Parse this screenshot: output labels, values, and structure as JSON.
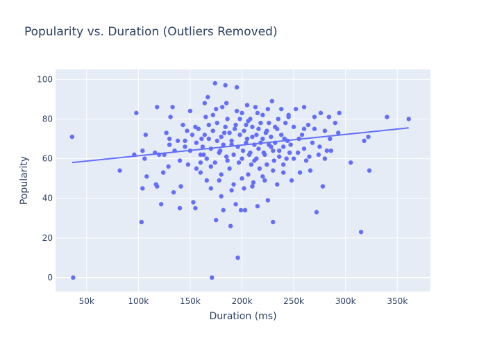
{
  "chart_data": {
    "type": "scatter",
    "title": "Popularity vs. Duration (Outliers Removed)",
    "xlabel": "Duration (ms)",
    "ylabel": "Popularity",
    "xlim": [
      20000,
      382000
    ],
    "ylim": [
      -7,
      105
    ],
    "xticks": [
      50000,
      100000,
      150000,
      200000,
      250000,
      300000,
      350000
    ],
    "xtick_labels": [
      "50k",
      "100k",
      "150k",
      "200k",
      "250k",
      "300k",
      "350k"
    ],
    "yticks": [
      0,
      20,
      40,
      60,
      80,
      100
    ],
    "ytick_labels": [
      "0",
      "20",
      "40",
      "60",
      "80",
      "100"
    ],
    "grid": true,
    "legend": "none",
    "colors": {
      "points": "#636efa",
      "trend": "#636efa",
      "plot_bg": "#e5ecf6",
      "grid": "#ffffff",
      "text": "#2a3f5f"
    },
    "trendline": {
      "x": [
        36000,
        361000
      ],
      "y": [
        58,
        75.5
      ]
    },
    "series": [
      {
        "points": [
          [
            36000,
            71
          ],
          [
            37000,
            0
          ],
          [
            82000,
            54
          ],
          [
            96000,
            62
          ],
          [
            98000,
            83
          ],
          [
            103000,
            28
          ],
          [
            104000,
            45
          ],
          [
            104000,
            64
          ],
          [
            106000,
            60
          ],
          [
            107000,
            72
          ],
          [
            108000,
            51
          ],
          [
            116000,
            63
          ],
          [
            117000,
            47
          ],
          [
            118000,
            86
          ],
          [
            118000,
            46
          ],
          [
            120000,
            62
          ],
          [
            122000,
            37
          ],
          [
            124000,
            53
          ],
          [
            127000,
            73
          ],
          [
            129000,
            56
          ],
          [
            130000,
            67
          ],
          [
            131000,
            81
          ],
          [
            133000,
            86
          ],
          [
            134000,
            43
          ],
          [
            138000,
            69
          ],
          [
            140000,
            35
          ],
          [
            141000,
            46
          ],
          [
            143000,
            77
          ],
          [
            145000,
            66
          ],
          [
            147000,
            74
          ],
          [
            148000,
            57
          ],
          [
            150000,
            84
          ],
          [
            152000,
            72
          ],
          [
            153000,
            38
          ],
          [
            155000,
            35
          ],
          [
            156000,
            55
          ],
          [
            160000,
            58
          ],
          [
            161000,
            70
          ],
          [
            163000,
            62
          ],
          [
            164000,
            88
          ],
          [
            166000,
            49
          ],
          [
            167000,
            91
          ],
          [
            168000,
            77
          ],
          [
            170000,
            56
          ],
          [
            171000,
            0
          ],
          [
            172000,
            82
          ],
          [
            174000,
            98
          ],
          [
            175000,
            29
          ],
          [
            176000,
            69
          ],
          [
            178000,
            49
          ],
          [
            179000,
            64
          ],
          [
            180000,
            41
          ],
          [
            181000,
            86
          ],
          [
            182000,
            34
          ],
          [
            183000,
            73
          ],
          [
            184000,
            97
          ],
          [
            185000,
            61
          ],
          [
            186000,
            80
          ],
          [
            188000,
            55
          ],
          [
            189000,
            26
          ],
          [
            190000,
            67
          ],
          [
            192000,
            47
          ],
          [
            193000,
            75
          ],
          [
            194000,
            37
          ],
          [
            195000,
            96
          ],
          [
            196000,
            10
          ],
          [
            197000,
            58
          ],
          [
            198000,
            72
          ],
          [
            199000,
            34
          ],
          [
            200000,
            83
          ],
          [
            201000,
            64
          ],
          [
            202000,
            45
          ],
          [
            203000,
            34
          ],
          [
            204000,
            77
          ],
          [
            205000,
            70
          ],
          [
            206000,
            52
          ],
          [
            207000,
            62
          ],
          [
            208000,
            80
          ],
          [
            209000,
            57
          ],
          [
            210000,
            71
          ],
          [
            211000,
            48
          ],
          [
            212000,
            67
          ],
          [
            213000,
            86
          ],
          [
            214000,
            60
          ],
          [
            215000,
            36
          ],
          [
            216000,
            75
          ],
          [
            217000,
            55
          ],
          [
            218000,
            68
          ],
          [
            220000,
            82
          ],
          [
            221000,
            63
          ],
          [
            222000,
            49
          ],
          [
            223000,
            73
          ],
          [
            224000,
            57
          ],
          [
            225000,
            39
          ],
          [
            226000,
            78
          ],
          [
            228000,
            66
          ],
          [
            229000,
            89
          ],
          [
            230000,
            28
          ],
          [
            231000,
            59
          ],
          [
            232000,
            76
          ],
          [
            234000,
            47
          ],
          [
            236000,
            64
          ],
          [
            238000,
            85
          ],
          [
            240000,
            53
          ],
          [
            241000,
            70
          ],
          [
            243000,
            60
          ],
          [
            245000,
            81
          ],
          [
            247000,
            67
          ],
          [
            248000,
            49
          ],
          [
            250000,
            76
          ],
          [
            252000,
            85
          ],
          [
            254000,
            63
          ],
          [
            256000,
            53
          ],
          [
            258000,
            72
          ],
          [
            260000,
            86
          ],
          [
            262000,
            59
          ],
          [
            264000,
            77
          ],
          [
            266000,
            54
          ],
          [
            268000,
            68
          ],
          [
            270000,
            81
          ],
          [
            272000,
            33
          ],
          [
            274000,
            62
          ],
          [
            276000,
            83
          ],
          [
            278000,
            46
          ],
          [
            280000,
            74
          ],
          [
            282000,
            64
          ],
          [
            284000,
            81
          ],
          [
            286000,
            64
          ],
          [
            290000,
            78
          ],
          [
            293000,
            73
          ],
          [
            294000,
            83
          ],
          [
            305000,
            58
          ],
          [
            315000,
            23
          ],
          [
            318000,
            69
          ],
          [
            322000,
            71
          ],
          [
            323000,
            54
          ],
          [
            340000,
            81
          ],
          [
            361000,
            80
          ],
          [
            156000,
            68
          ],
          [
            158000,
            75
          ],
          [
            160000,
            62
          ],
          [
            162000,
            66
          ],
          [
            164000,
            72
          ],
          [
            166000,
            60
          ],
          [
            168000,
            70
          ],
          [
            170000,
            65
          ],
          [
            172000,
            74
          ],
          [
            174000,
            58
          ],
          [
            176000,
            78
          ],
          [
            178000,
            63
          ],
          [
            180000,
            71
          ],
          [
            182000,
            67
          ],
          [
            184000,
            76
          ],
          [
            186000,
            59
          ],
          [
            188000,
            73
          ],
          [
            190000,
            69
          ],
          [
            192000,
            62
          ],
          [
            194000,
            77
          ],
          [
            196000,
            66
          ],
          [
            198000,
            80
          ],
          [
            200000,
            60
          ],
          [
            202000,
            74
          ],
          [
            204000,
            68
          ],
          [
            206000,
            79
          ],
          [
            208000,
            63
          ],
          [
            210000,
            76
          ],
          [
            212000,
            59
          ],
          [
            214000,
            72
          ],
          [
            216000,
            65
          ],
          [
            218000,
            78
          ],
          [
            220000,
            70
          ],
          [
            222000,
            62
          ],
          [
            224000,
            74
          ],
          [
            226000,
            67
          ],
          [
            228000,
            71
          ],
          [
            230000,
            64
          ],
          [
            232000,
            68
          ],
          [
            234000,
            75
          ],
          [
            236000,
            61
          ],
          [
            238000,
            72
          ],
          [
            240000,
            66
          ],
          [
            242000,
            78
          ],
          [
            244000,
            69
          ],
          [
            246000,
            63
          ],
          [
            160000,
            53
          ],
          [
            165000,
            81
          ],
          [
            170000,
            45
          ],
          [
            175000,
            85
          ],
          [
            180000,
            52
          ],
          [
            185000,
            88
          ],
          [
            190000,
            44
          ],
          [
            195000,
            84
          ],
          [
            200000,
            50
          ],
          [
            205000,
            87
          ],
          [
            210000,
            46
          ],
          [
            215000,
            83
          ],
          [
            220000,
            51
          ],
          [
            225000,
            85
          ],
          [
            230000,
            54
          ],
          [
            235000,
            80
          ],
          [
            240000,
            57
          ],
          [
            245000,
            82
          ],
          [
            150000,
            64
          ],
          [
            145000,
            69
          ],
          [
            140000,
            59
          ],
          [
            135000,
            64
          ],
          [
            130000,
            70
          ],
          [
            125000,
            62
          ],
          [
            155000,
            76
          ],
          [
            250000,
            60
          ],
          [
            255000,
            70
          ],
          [
            260000,
            65
          ],
          [
            265000,
            61
          ],
          [
            270000,
            75
          ],
          [
            275000,
            66
          ],
          [
            280000,
            60
          ],
          [
            285000,
            70
          ],
          [
            260000,
            75
          ]
        ]
      }
    ]
  }
}
